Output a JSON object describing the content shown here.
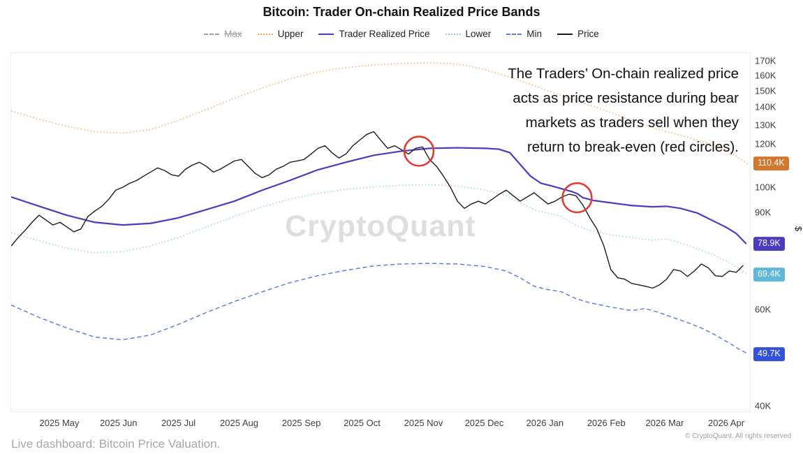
{
  "title": "Bitcoin: Trader On-chain Realized Price Bands",
  "watermark": "CryptoQuant",
  "legend": {
    "items": [
      {
        "label": "Max",
        "color": "#9aa0a6",
        "style": "dashed",
        "disabled": true
      },
      {
        "label": "Upper",
        "color": "#f5a35c",
        "style": "dotted",
        "disabled": false
      },
      {
        "label": "Trader Realized Price",
        "color": "#4b3ac2",
        "style": "solid",
        "disabled": false
      },
      {
        "label": "Lower",
        "color": "#8ecde6",
        "style": "dotted",
        "disabled": false
      },
      {
        "label": "Min",
        "color": "#5d7de9",
        "style": "dashed",
        "disabled": false
      },
      {
        "label": "Price",
        "color": "#1b1b1b",
        "style": "solid",
        "disabled": false
      }
    ]
  },
  "annotation": {
    "lines": [
      "The Traders’ On-chain realized price",
      "acts as price resistance during bear",
      "markets as traders sell when they",
      "return to break-even (red circles)."
    ]
  },
  "footer": {
    "left": "Live dashboard: Bitcoin Price Valuation.",
    "right": "© CryptoQuant. All rights reserved"
  },
  "chart_data": {
    "type": "line",
    "title": "Bitcoin: Trader On-chain Realized Price Bands",
    "y_scale": "log",
    "y_unit": "$",
    "y_domain": [
      39,
      176
    ],
    "legend_position": "top",
    "grid": false,
    "y_ticks": [
      {
        "label": "170K",
        "value": 170
      },
      {
        "label": "160K",
        "value": 160
      },
      {
        "label": "150K",
        "value": 150
      },
      {
        "label": "140K",
        "value": 140
      },
      {
        "label": "130K",
        "value": 130
      },
      {
        "label": "120K",
        "value": 120
      },
      {
        "label": "100K",
        "value": 100
      },
      {
        "label": "90K",
        "value": 90
      },
      {
        "label": "60K",
        "value": 60
      },
      {
        "label": "40K",
        "value": 40
      }
    ],
    "y_badges": [
      {
        "label": "110.4K",
        "value": 110.4,
        "color": "#d2772e",
        "series": "Upper"
      },
      {
        "label": "78.9K",
        "value": 78.9,
        "color": "#4b3ac2",
        "series": "Trader Realized Price"
      },
      {
        "label": "69.4K",
        "value": 69.4,
        "color": "#5fb7da",
        "series": "Lower"
      },
      {
        "label": "49.7K",
        "value": 49.7,
        "color": "#3352d9",
        "series": "Min"
      }
    ],
    "x_ticks": [
      {
        "label": "2025 May",
        "x": 0.066
      },
      {
        "label": "2025 Jun",
        "x": 0.146
      },
      {
        "label": "2025 Jul",
        "x": 0.227
      },
      {
        "label": "2025 Aug",
        "x": 0.309
      },
      {
        "label": "2025 Sep",
        "x": 0.393
      },
      {
        "label": "2025 Oct",
        "x": 0.475
      },
      {
        "label": "2025 Nov",
        "x": 0.558
      },
      {
        "label": "2025 Dec",
        "x": 0.64
      },
      {
        "label": "2026 Jan",
        "x": 0.722
      },
      {
        "label": "2026 Feb",
        "x": 0.805
      },
      {
        "label": "2026 Mar",
        "x": 0.884
      },
      {
        "label": "2026 Apr",
        "x": 0.967
      }
    ],
    "series": [
      {
        "name": "Upper",
        "color": "#f5a35c",
        "style": "dotted",
        "width": 1.6,
        "points": [
          [
            0,
            138.0
          ],
          [
            0.038,
            133.3
          ],
          [
            0.075,
            129.4
          ],
          [
            0.113,
            126.5
          ],
          [
            0.151,
            125.7
          ],
          [
            0.189,
            127.6
          ],
          [
            0.226,
            132.5
          ],
          [
            0.264,
            138.8
          ],
          [
            0.302,
            145.5
          ],
          [
            0.34,
            152.0
          ],
          [
            0.377,
            157.9
          ],
          [
            0.415,
            162.6
          ],
          [
            0.453,
            165.5
          ],
          [
            0.491,
            167.5
          ],
          [
            0.528,
            168.4
          ],
          [
            0.566,
            168.9
          ],
          [
            0.594,
            168.4
          ],
          [
            0.613,
            167.5
          ],
          [
            0.642,
            164.1
          ],
          [
            0.67,
            159.8
          ],
          [
            0.698,
            155.2
          ],
          [
            0.726,
            150.3
          ],
          [
            0.755,
            145.5
          ],
          [
            0.783,
            141.3
          ],
          [
            0.811,
            137.2
          ],
          [
            0.84,
            132.5
          ],
          [
            0.868,
            128.7
          ],
          [
            0.887,
            126.5
          ],
          [
            0.906,
            124.6
          ],
          [
            0.929,
            122.1
          ],
          [
            0.953,
            119.3
          ],
          [
            0.972,
            116.5
          ],
          [
            0.986,
            112.8
          ],
          [
            0.997,
            110.4
          ]
        ]
      },
      {
        "name": "Lower",
        "color": "#8ecde6",
        "style": "dotted",
        "width": 1.6,
        "points": [
          [
            0,
            82.7
          ],
          [
            0.038,
            79.9
          ],
          [
            0.075,
            77.5
          ],
          [
            0.113,
            76.0
          ],
          [
            0.151,
            76.4
          ],
          [
            0.189,
            78.2
          ],
          [
            0.226,
            81.0
          ],
          [
            0.264,
            84.7
          ],
          [
            0.302,
            88.5
          ],
          [
            0.34,
            92.2
          ],
          [
            0.377,
            95.2
          ],
          [
            0.415,
            97.5
          ],
          [
            0.453,
            99.2
          ],
          [
            0.491,
            100.3
          ],
          [
            0.528,
            100.9
          ],
          [
            0.566,
            101.2
          ],
          [
            0.604,
            100.6
          ],
          [
            0.642,
            98.9
          ],
          [
            0.67,
            96.6
          ],
          [
            0.689,
            93.8
          ],
          [
            0.708,
            91.1
          ],
          [
            0.726,
            89.8
          ],
          [
            0.745,
            88.5
          ],
          [
            0.764,
            85.4
          ],
          [
            0.783,
            83.5
          ],
          [
            0.811,
            82.0
          ],
          [
            0.84,
            81.0
          ],
          [
            0.868,
            80.1
          ],
          [
            0.887,
            80.6
          ],
          [
            0.906,
            79.2
          ],
          [
            0.929,
            77.3
          ],
          [
            0.953,
            75.1
          ],
          [
            0.972,
            72.9
          ],
          [
            0.986,
            71.0
          ],
          [
            0.997,
            69.4
          ]
        ]
      },
      {
        "name": "Min",
        "color": "#5d7de9",
        "style": "dashed",
        "width": 1.5,
        "points": [
          [
            0,
            61.0
          ],
          [
            0.038,
            57.9
          ],
          [
            0.075,
            55.4
          ],
          [
            0.113,
            53.3
          ],
          [
            0.151,
            52.7
          ],
          [
            0.189,
            53.8
          ],
          [
            0.226,
            56.2
          ],
          [
            0.264,
            59.1
          ],
          [
            0.302,
            61.9
          ],
          [
            0.34,
            64.5
          ],
          [
            0.377,
            67.0
          ],
          [
            0.415,
            69.0
          ],
          [
            0.453,
            70.6
          ],
          [
            0.491,
            71.9
          ],
          [
            0.528,
            72.5
          ],
          [
            0.566,
            72.7
          ],
          [
            0.604,
            72.5
          ],
          [
            0.642,
            71.7
          ],
          [
            0.67,
            70.4
          ],
          [
            0.689,
            68.4
          ],
          [
            0.708,
            66.0
          ],
          [
            0.726,
            65.1
          ],
          [
            0.745,
            64.5
          ],
          [
            0.764,
            62.7
          ],
          [
            0.783,
            61.6
          ],
          [
            0.811,
            60.5
          ],
          [
            0.84,
            59.6
          ],
          [
            0.858,
            60.1
          ],
          [
            0.877,
            59.1
          ],
          [
            0.896,
            57.9
          ],
          [
            0.915,
            56.7
          ],
          [
            0.934,
            55.4
          ],
          [
            0.953,
            53.8
          ],
          [
            0.972,
            52.0
          ],
          [
            0.986,
            50.6
          ],
          [
            0.997,
            49.7
          ]
        ]
      },
      {
        "name": "Trader Realized Price",
        "color": "#4b3ac2",
        "style": "solid",
        "width": 2.2,
        "points": [
          [
            0,
            96.1
          ],
          [
            0.038,
            92.4
          ],
          [
            0.075,
            89.0
          ],
          [
            0.113,
            86.4
          ],
          [
            0.151,
            85.4
          ],
          [
            0.189,
            86.0
          ],
          [
            0.226,
            88.0
          ],
          [
            0.264,
            91.1
          ],
          [
            0.302,
            94.4
          ],
          [
            0.34,
            98.9
          ],
          [
            0.377,
            103.0
          ],
          [
            0.415,
            107.7
          ],
          [
            0.453,
            111.2
          ],
          [
            0.491,
            114.5
          ],
          [
            0.528,
            116.5
          ],
          [
            0.566,
            117.9
          ],
          [
            0.604,
            118.2
          ],
          [
            0.642,
            117.9
          ],
          [
            0.66,
            117.5
          ],
          [
            0.675,
            115.8
          ],
          [
            0.689,
            110.2
          ],
          [
            0.703,
            104.9
          ],
          [
            0.717,
            101.8
          ],
          [
            0.731,
            100.7
          ],
          [
            0.745,
            99.5
          ],
          [
            0.759,
            98.3
          ],
          [
            0.766,
            97.5
          ],
          [
            0.774,
            95.8
          ],
          [
            0.788,
            94.7
          ],
          [
            0.811,
            93.8
          ],
          [
            0.84,
            92.7
          ],
          [
            0.868,
            92.2
          ],
          [
            0.887,
            92.4
          ],
          [
            0.906,
            91.6
          ],
          [
            0.929,
            89.8
          ],
          [
            0.948,
            87.2
          ],
          [
            0.967,
            84.7
          ],
          [
            0.981,
            82.5
          ],
          [
            0.995,
            78.9
          ]
        ]
      },
      {
        "name": "Price",
        "color": "#1b1b1b",
        "style": "solid",
        "width": 1.4,
        "x_range": [
          0,
          0.991
        ],
        "values": [
          78.2,
          81.0,
          83.5,
          86.4,
          89.0,
          87.2,
          85.4,
          86.4,
          84.7,
          83.0,
          84.0,
          88.5,
          90.6,
          92.4,
          95.2,
          98.9,
          100.1,
          101.8,
          103.0,
          104.9,
          106.7,
          108.6,
          107.4,
          105.5,
          104.9,
          108.0,
          109.9,
          111.2,
          109.3,
          106.7,
          108.0,
          109.9,
          111.8,
          112.5,
          109.3,
          106.1,
          104.2,
          105.5,
          108.0,
          109.3,
          111.2,
          111.8,
          112.5,
          115.1,
          117.9,
          119.2,
          115.8,
          113.2,
          115.1,
          119.2,
          122.1,
          125.0,
          126.5,
          122.1,
          117.9,
          119.2,
          117.2,
          115.1,
          117.9,
          118.6,
          112.5,
          109.3,
          104.9,
          100.1,
          94.4,
          91.6,
          93.3,
          94.4,
          93.3,
          95.2,
          97.2,
          98.9,
          96.6,
          94.4,
          96.1,
          97.8,
          95.5,
          93.3,
          94.4,
          96.1,
          97.2,
          96.6,
          92.8,
          88.0,
          84.0,
          78.2,
          70.8,
          68.4,
          68.0,
          66.8,
          66.4,
          66.0,
          65.5,
          66.4,
          68.0,
          70.8,
          70.4,
          68.8,
          70.4,
          72.5,
          71.3,
          69.0,
          68.8,
          70.4,
          70.0,
          72.1
        ]
      }
    ],
    "red_circles": [
      {
        "x": 0.552,
        "value": 116.5
      },
      {
        "x": 0.766,
        "value": 95.8
      }
    ],
    "circle_color": "#e23b30",
    "circle_radius": 21
  }
}
